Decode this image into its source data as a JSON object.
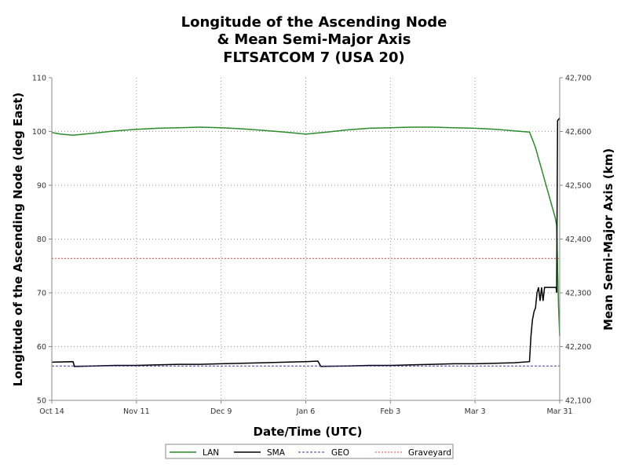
{
  "chart_data": {
    "type": "line",
    "title": [
      "Longitude of the Ascending Node",
      "& Mean Semi-Major Axis",
      "FLTSATCOM 7 (USA 20)"
    ],
    "xlabel": "Date/Time (UTC)",
    "ylabel_left": "Longitude of the Ascending Node (deg East)",
    "ylabel_right": "Mean Semi-Major Axis (km)",
    "xlim": [
      "Oct 14",
      "Mar 31"
    ],
    "x_ticks": [
      {
        "day": 0,
        "label": "Oct 14"
      },
      {
        "day": 28,
        "label": "Nov 11"
      },
      {
        "day": 56,
        "label": "Dec 9"
      },
      {
        "day": 84,
        "label": "Jan 6"
      },
      {
        "day": 112,
        "label": "Feb 3"
      },
      {
        "day": 140,
        "label": "Mar 3"
      },
      {
        "day": 168,
        "label": "Mar 31"
      }
    ],
    "ylim_left": [
      50,
      110
    ],
    "y_ticks_left": [
      "50",
      "60",
      "70",
      "80",
      "90",
      "100",
      "110"
    ],
    "ylim_right": [
      42100,
      42700
    ],
    "y_ticks_right": [
      "42,100",
      "42,200",
      "42,300",
      "42,400",
      "42,500",
      "42,600",
      "42,700"
    ],
    "grid": true,
    "legend_position": "bottom",
    "series": [
      {
        "name": "LAN",
        "axis": "left",
        "color": "#2a8c2a",
        "style": "solid",
        "points": [
          [
            0,
            99.8
          ],
          [
            3,
            99.5
          ],
          [
            7,
            99.3
          ],
          [
            14,
            99.7
          ],
          [
            21,
            100.1
          ],
          [
            28,
            100.4
          ],
          [
            35,
            100.6
          ],
          [
            42,
            100.7
          ],
          [
            49,
            100.8
          ],
          [
            56,
            100.7
          ],
          [
            63,
            100.5
          ],
          [
            70,
            100.2
          ],
          [
            77,
            99.9
          ],
          [
            84,
            99.5
          ],
          [
            91,
            99.9
          ],
          [
            98,
            100.3
          ],
          [
            105,
            100.6
          ],
          [
            112,
            100.7
          ],
          [
            119,
            100.8
          ],
          [
            126,
            100.8
          ],
          [
            133,
            100.7
          ],
          [
            140,
            100.6
          ],
          [
            147,
            100.4
          ],
          [
            153,
            100.1
          ],
          [
            158,
            99.9
          ],
          [
            159,
            98.5
          ],
          [
            160,
            97.0
          ],
          [
            161,
            95.0
          ],
          [
            162,
            93.0
          ],
          [
            163,
            91.0
          ],
          [
            164,
            89.0
          ],
          [
            165,
            87.0
          ],
          [
            166,
            85.0
          ],
          [
            166.5,
            84.0
          ],
          [
            167,
            82.5
          ],
          [
            167.3,
            75.0
          ],
          [
            167.6,
            67.5
          ],
          [
            168,
            62.0
          ]
        ]
      },
      {
        "name": "SMA",
        "axis": "right",
        "color": "#000000",
        "style": "solid",
        "points": [
          [
            0,
            42171
          ],
          [
            7,
            42172
          ],
          [
            7.5,
            42163
          ],
          [
            14,
            42164
          ],
          [
            21,
            42165
          ],
          [
            28,
            42165
          ],
          [
            35,
            42166
          ],
          [
            42,
            42167
          ],
          [
            49,
            42167
          ],
          [
            56,
            42168
          ],
          [
            63,
            42169
          ],
          [
            70,
            42170
          ],
          [
            77,
            42171
          ],
          [
            84,
            42172
          ],
          [
            88,
            42173
          ],
          [
            89,
            42163
          ],
          [
            98,
            42164
          ],
          [
            105,
            42165
          ],
          [
            112,
            42165
          ],
          [
            119,
            42166
          ],
          [
            126,
            42167
          ],
          [
            133,
            42168
          ],
          [
            140,
            42168
          ],
          [
            147,
            42169
          ],
          [
            153,
            42170
          ],
          [
            158,
            42172
          ],
          [
            158.5,
            42220
          ],
          [
            159,
            42250
          ],
          [
            159.5,
            42265
          ],
          [
            160,
            42272
          ],
          [
            160.5,
            42300
          ],
          [
            161,
            42310
          ],
          [
            161.5,
            42285
          ],
          [
            162,
            42310
          ],
          [
            162.5,
            42285
          ],
          [
            163,
            42310
          ],
          [
            165,
            42310
          ],
          [
            166,
            42310
          ],
          [
            166.8,
            42310
          ],
          [
            167,
            42300
          ],
          [
            167.3,
            42620
          ],
          [
            168,
            42625
          ]
        ]
      },
      {
        "name": "GEO",
        "axis": "right",
        "color": "#3a3aa8",
        "style": "dashed",
        "points": [
          [
            0,
            42164
          ],
          [
            168,
            42164
          ]
        ]
      },
      {
        "name": "Graveyard",
        "axis": "right",
        "color": "#e04040",
        "style": "dotted",
        "points": [
          [
            0,
            42364
          ],
          [
            168,
            42364
          ]
        ]
      }
    ]
  }
}
